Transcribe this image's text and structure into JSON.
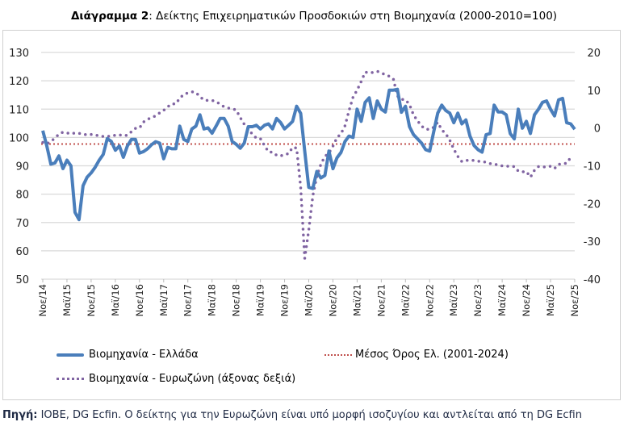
{
  "title": {
    "bold": "Διάγραμμα 2",
    "rest": ": Δείκτης Επιχειρηματικών Προσδοκιών στη Βιομηχανία (2000-2010=100)"
  },
  "legend": {
    "greece": "Βιομηχανία  - Ελλάδα",
    "average": "Μέσος Όρος Ελ. (2001-2024)",
    "eurozone": "Βιομηχανία - Ευρωζώνη (άξονας δεξιά)"
  },
  "footer": {
    "bold": "Πηγή:",
    "rest": " ΙΟΒΕ, DG Ecfin. Ο δείκτης για την Ευρωζώνη είναι υπό μορφή ισοζυγίου και αντλείται από τη DG Ecfin"
  },
  "chart_data": {
    "type": "line",
    "frequency": "monthly",
    "x_ticks": [
      "Νοε/14",
      "Μαϊ/15",
      "Νοε/15",
      "Μαϊ/16",
      "Νοε/16",
      "Μαϊ/17",
      "Νοε/17",
      "Μαϊ/18",
      "Νοε/18",
      "Μαϊ/19",
      "Νοε/19",
      "Μαϊ/20",
      "Νοε/20",
      "Μαϊ/21",
      "Νοε/21",
      "Μαϊ/22",
      "Νοε/22",
      "Μαϊ/23",
      "Νοε/23",
      "Μαϊ/24",
      "Νοε/24",
      "Μαϊ/25",
      "Νοε/25"
    ],
    "y_left": {
      "ticks": [
        50,
        60,
        70,
        80,
        90,
        100,
        110,
        120,
        130
      ],
      "range": [
        50,
        130
      ]
    },
    "y_right": {
      "ticks": [
        -40,
        -30,
        -20,
        -10,
        0,
        10,
        20
      ],
      "range": [
        -40,
        20
      ]
    },
    "grid": true,
    "legend_position": "bottom",
    "colors": {
      "greece": "#4a7ebb",
      "average": "#c0504d",
      "eurozone": "#8064a2"
    },
    "series": [
      {
        "name": "Βιομηχανία  - Ελλάδα",
        "axis": "left",
        "style": "solid",
        "values": [
          102.4,
          97,
          90.6,
          91,
          93.5,
          89,
          92,
          90,
          73.6,
          71,
          83,
          86,
          87.5,
          89.5,
          92,
          94,
          99.6,
          98.6,
          95.5,
          97,
          93,
          97,
          99.3,
          99.3,
          94.5,
          95,
          96,
          97.5,
          98.5,
          98,
          92.5,
          96.5,
          96,
          96,
          104,
          99.3,
          98.6,
          103,
          104,
          108,
          103,
          103.4,
          101.5,
          104,
          106.7,
          106.7,
          104,
          98.6,
          97.6,
          96.2,
          98,
          103.8,
          103.8,
          104.3,
          103,
          104.3,
          104.8,
          103,
          106.7,
          105.3,
          103,
          104.3,
          105.7,
          111,
          108.5,
          95.2,
          82.4,
          82,
          88,
          85.7,
          86.6,
          95.2,
          89,
          92.8,
          94.7,
          98.6,
          100.5,
          100,
          110,
          105.7,
          112.4,
          114,
          106.7,
          112.9,
          110,
          109,
          116.7,
          116.7,
          117,
          108.9,
          111,
          103.8,
          101,
          99.5,
          98,
          95.7,
          95.2,
          102,
          108.6,
          111.4,
          109.5,
          108.6,
          105.2,
          108.6,
          104.8,
          106.2,
          100.5,
          97.2,
          95.7,
          94.8,
          101,
          101.4,
          111.4,
          109,
          109,
          108,
          101.4,
          99.5,
          110,
          103.3,
          105.7,
          101.4,
          108,
          110,
          112.4,
          112.9,
          110,
          107.6,
          113.3,
          113.8,
          105.2,
          104.8,
          102.9
        ]
      },
      {
        "name": "Μέσος Όρος Ελ. (2001-2024)",
        "axis": "left",
        "style": "dotted",
        "constant": 97.7
      },
      {
        "name": "Βιομηχανία - Ευρωζώνη (άξονας δεξιά)",
        "axis": "right",
        "style": "dotted",
        "values": [
          -3.8,
          -4.2,
          -3.5,
          -2.7,
          -1.6,
          -1.1,
          -1.3,
          -1.5,
          -1.3,
          -1.4,
          -1.6,
          -1.8,
          -1.7,
          -1.8,
          -2.1,
          -2.2,
          -2.2,
          -2.1,
          -1.9,
          -1.8,
          -2.0,
          -1.9,
          -1.0,
          -0.1,
          0,
          1.6,
          2.3,
          2.8,
          3.2,
          4.0,
          4.7,
          5.6,
          6.4,
          6.4,
          7.9,
          8.9,
          9.3,
          9.6,
          9.4,
          8.3,
          7.4,
          7.3,
          7.3,
          7.0,
          6.3,
          5.6,
          5.3,
          5.1,
          4.8,
          2.8,
          1.0,
          -0.3,
          -1.6,
          -2.7,
          -2.8,
          -4.6,
          -6.3,
          -6.4,
          -7.2,
          -7.4,
          -7.0,
          -6.8,
          -5.1,
          -5.3,
          -15.7,
          -34.5,
          -27,
          -18,
          -12.8,
          -9.6,
          -7.5,
          -6.6,
          -4.8,
          -2.6,
          -1.5,
          0.6,
          4.6,
          8.2,
          10,
          12.3,
          14.8,
          14.6,
          14.7,
          15,
          14.6,
          14.1,
          13.7,
          13,
          8.5,
          7.6,
          7.5,
          6.2,
          3.5,
          1.9,
          0.5,
          -0.3,
          -0.4,
          0.2,
          1.5,
          -0.5,
          -1.5,
          -3.2,
          -5.6,
          -7.5,
          -8.9,
          -8.6,
          -8.5,
          -8.6,
          -8.8,
          -8.8,
          -9.1,
          -9.4,
          -9.5,
          -9.8,
          -10,
          -10.1,
          -10.1,
          -10.2,
          -11.4,
          -11.6,
          -11.5,
          -13,
          -11.2,
          -10.2,
          -10.3,
          -10.3,
          -10.1,
          -10.7,
          -9.6,
          -9.5,
          -9.3,
          -7.8
        ]
      }
    ]
  }
}
